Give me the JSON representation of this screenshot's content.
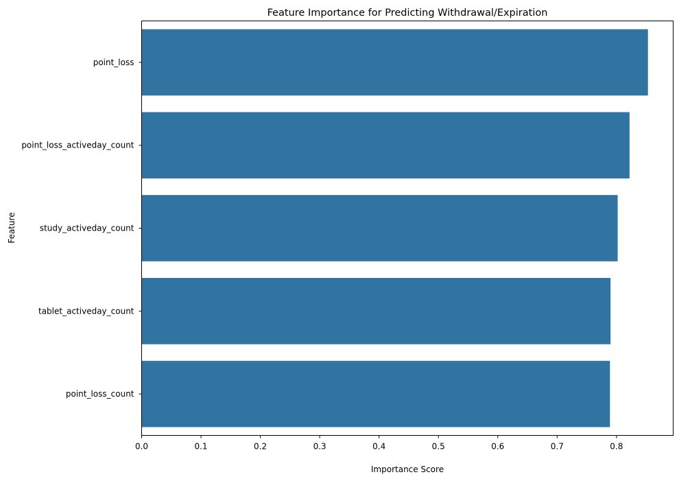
{
  "chart_data": {
    "type": "bar",
    "orientation": "horizontal",
    "title": "Feature Importance for Predicting Withdrawal/Expiration",
    "xlabel": "Importance Score",
    "ylabel": "Feature",
    "categories": [
      "point_loss",
      "point_loss_activeday_count",
      "study_activeday_count",
      "tablet_activeday_count",
      "point_loss_count"
    ],
    "values": [
      0.853,
      0.822,
      0.802,
      0.79,
      0.789
    ],
    "xlim": [
      0,
      0.8955
    ],
    "xticks": [
      0.0,
      0.1,
      0.2,
      0.3,
      0.4,
      0.5,
      0.6,
      0.7,
      0.8
    ],
    "xtick_labels": [
      "0.0",
      "0.1",
      "0.2",
      "0.3",
      "0.4",
      "0.5",
      "0.6",
      "0.7",
      "0.8"
    ],
    "grid": false,
    "bar_color": "#3274a1"
  }
}
